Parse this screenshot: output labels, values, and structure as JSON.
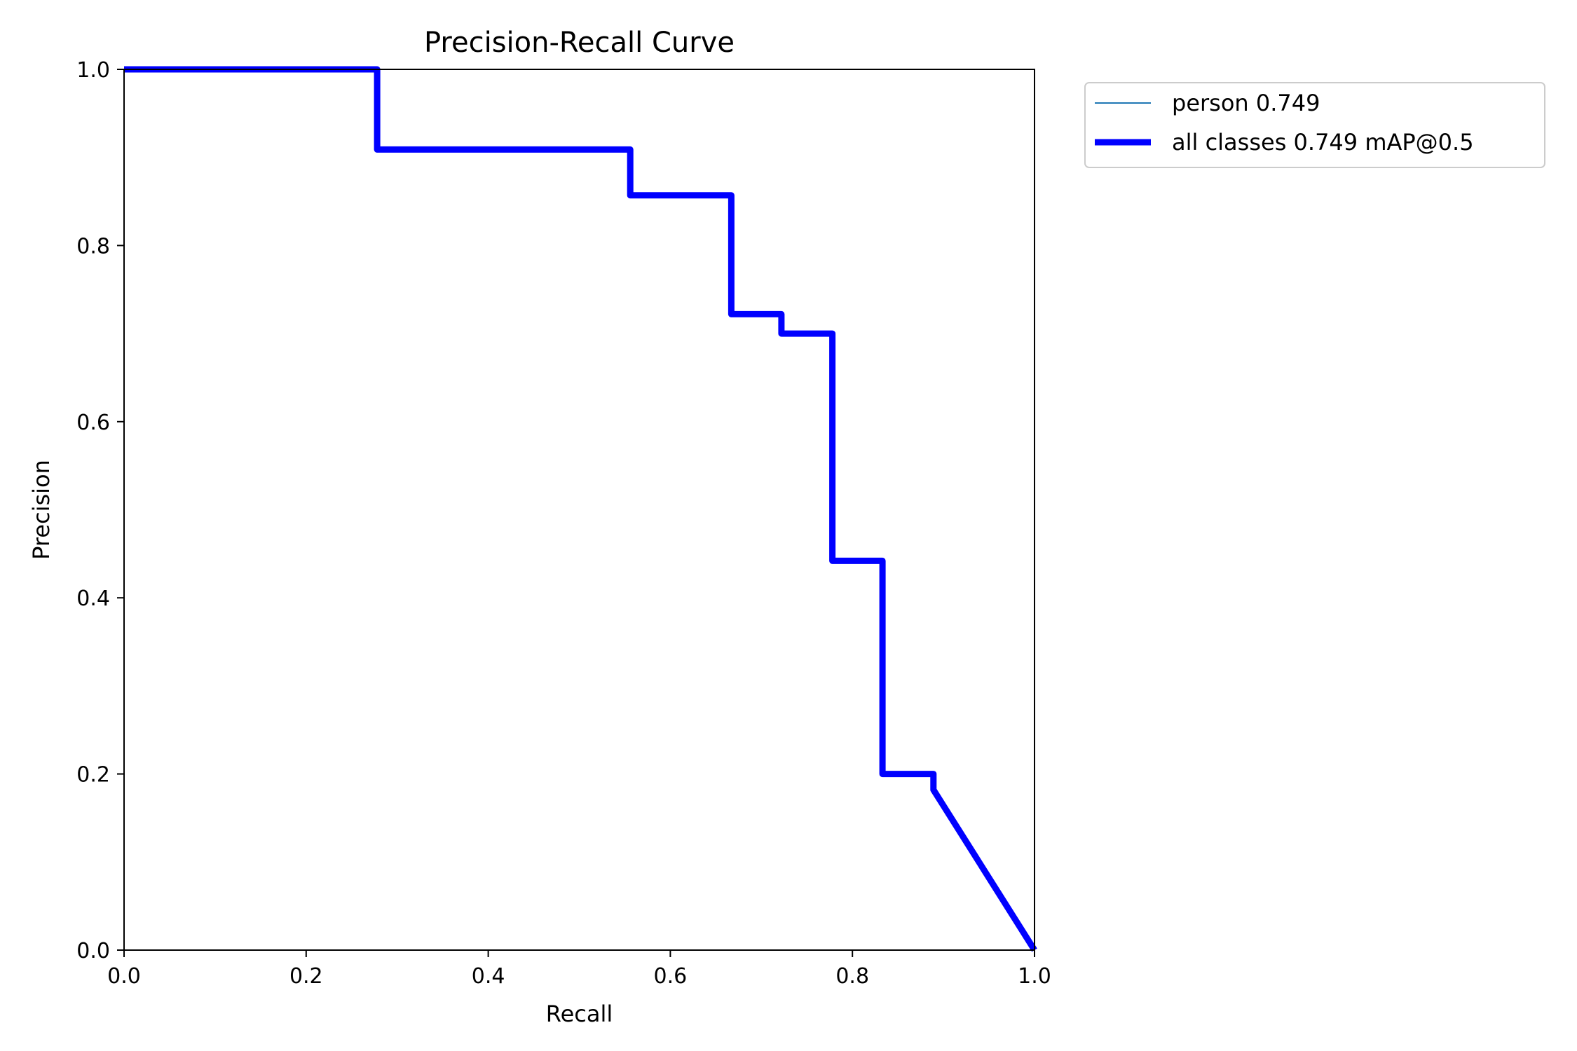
{
  "chart_data": {
    "type": "line",
    "title": "Precision-Recall Curve",
    "xlabel": "Recall",
    "ylabel": "Precision",
    "xlim": [
      0.0,
      1.0
    ],
    "ylim": [
      0.0,
      1.0
    ],
    "x_ticks": [
      "0.0",
      "0.2",
      "0.4",
      "0.6",
      "0.8",
      "1.0"
    ],
    "y_ticks": [
      "0.0",
      "0.2",
      "0.4",
      "0.6",
      "0.8",
      "1.0"
    ],
    "grid": false,
    "legend_position": "outside-top-right",
    "series": [
      {
        "name": "person 0.749",
        "color": "#1f77b4",
        "line": "thin",
        "x": [
          0.0,
          0.278,
          0.278,
          0.556,
          0.556,
          0.667,
          0.667,
          0.722,
          0.722,
          0.778,
          0.778,
          0.833,
          0.833,
          0.889,
          0.889,
          1.0
        ],
        "y": [
          1.0,
          1.0,
          0.909,
          0.909,
          0.857,
          0.857,
          0.722,
          0.722,
          0.7,
          0.7,
          0.442,
          0.442,
          0.2,
          0.2,
          0.182,
          0.0
        ]
      },
      {
        "name": "all classes 0.749 mAP@0.5",
        "color": "#0000ff",
        "line": "thick",
        "x": [
          0.0,
          0.278,
          0.278,
          0.556,
          0.556,
          0.667,
          0.667,
          0.722,
          0.722,
          0.778,
          0.778,
          0.833,
          0.833,
          0.889,
          0.889,
          1.0
        ],
        "y": [
          1.0,
          1.0,
          0.909,
          0.909,
          0.857,
          0.857,
          0.722,
          0.722,
          0.7,
          0.7,
          0.442,
          0.442,
          0.2,
          0.2,
          0.182,
          0.0
        ]
      }
    ]
  }
}
